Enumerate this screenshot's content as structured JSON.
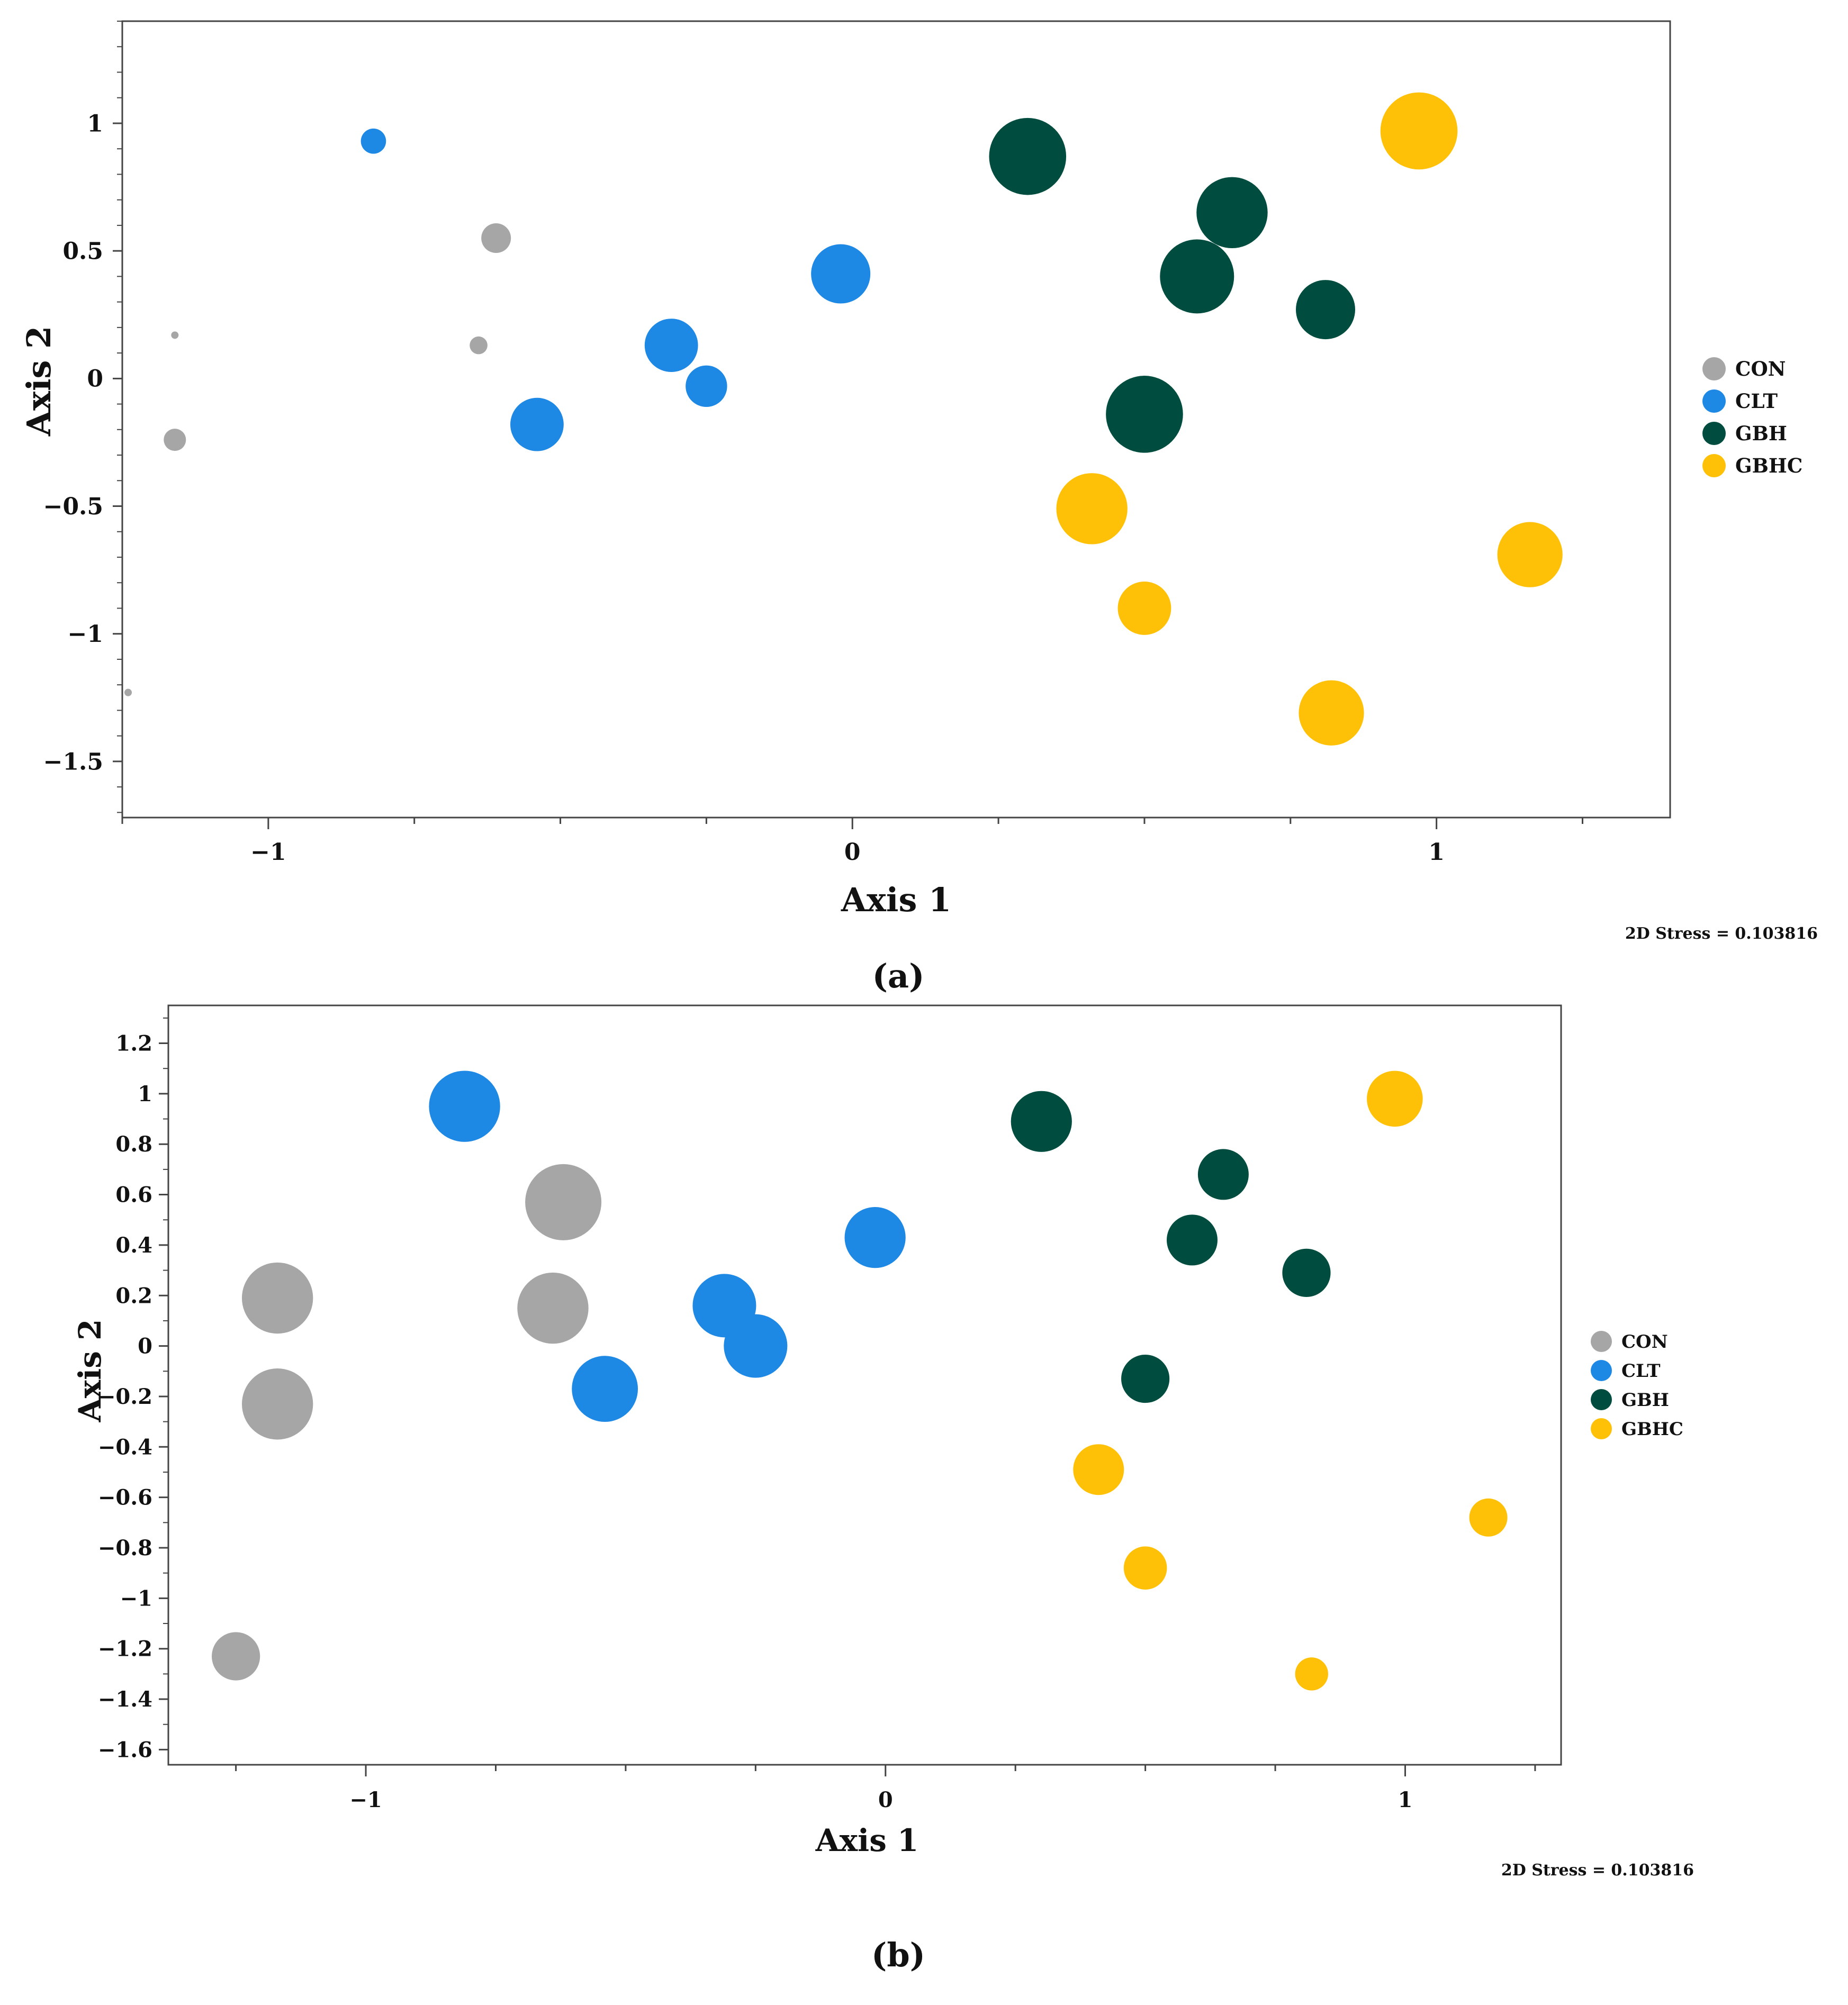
{
  "colors": {
    "CON": "#a6a6a6",
    "CLT": "#1e88e5",
    "GBH": "#004d40",
    "GBHC": "#ffc107"
  },
  "chart_data": [
    {
      "type": "scatter",
      "panel_label": "(a)",
      "xlabel": "Axis 1",
      "ylabel": "Axis 2",
      "xlim": [
        -1.25,
        1.4
      ],
      "ylim": [
        -1.72,
        1.4
      ],
      "x_ticks": [
        -1,
        0,
        1
      ],
      "x_tick_labels": [
        "−1",
        "0",
        "1"
      ],
      "y_ticks": [
        1,
        0.5,
        0,
        -0.5,
        -1,
        -1.5
      ],
      "y_tick_labels": [
        "1",
        "0.5",
        "0",
        "−0.5",
        "−1",
        "−1.5"
      ],
      "stress_text": "2D Stress = 0.103816",
      "legend": [
        "CON",
        "CLT",
        "GBH",
        "GBHC"
      ],
      "series": [
        {
          "name": "CON",
          "points": [
            {
              "x": -0.61,
              "y": 0.55,
              "size": 0.2
            },
            {
              "x": -1.16,
              "y": 0.17,
              "size": 0.05
            },
            {
              "x": -0.64,
              "y": 0.13,
              "size": 0.12
            },
            {
              "x": -1.16,
              "y": -0.24,
              "size": 0.15
            },
            {
              "x": -1.24,
              "y": -1.23,
              "size": 0.05
            }
          ]
        },
        {
          "name": "CLT",
          "points": [
            {
              "x": -0.82,
              "y": 0.93,
              "size": 0.17
            },
            {
              "x": -0.02,
              "y": 0.41,
              "size": 0.4
            },
            {
              "x": -0.31,
              "y": 0.13,
              "size": 0.36
            },
            {
              "x": -0.25,
              "y": -0.03,
              "size": 0.28
            },
            {
              "x": -0.54,
              "y": -0.18,
              "size": 0.36
            }
          ]
        },
        {
          "name": "GBH",
          "points": [
            {
              "x": 0.3,
              "y": 0.87,
              "size": 0.52
            },
            {
              "x": 0.65,
              "y": 0.65,
              "size": 0.48
            },
            {
              "x": 0.59,
              "y": 0.4,
              "size": 0.5
            },
            {
              "x": 0.81,
              "y": 0.27,
              "size": 0.4
            },
            {
              "x": 0.5,
              "y": -0.14,
              "size": 0.52
            }
          ]
        },
        {
          "name": "GBHC",
          "points": [
            {
              "x": 0.97,
              "y": 0.97,
              "size": 0.52
            },
            {
              "x": 0.41,
              "y": -0.51,
              "size": 0.48
            },
            {
              "x": 1.16,
              "y": -0.69,
              "size": 0.44
            },
            {
              "x": 0.5,
              "y": -0.9,
              "size": 0.36
            },
            {
              "x": 0.82,
              "y": -1.31,
              "size": 0.44
            }
          ]
        }
      ]
    },
    {
      "type": "scatter",
      "panel_label": "(b)",
      "xlabel": "Axis 1",
      "ylabel": "Axis 2",
      "xlim": [
        -1.38,
        1.3
      ],
      "ylim": [
        -1.66,
        1.35
      ],
      "x_ticks": [
        -1,
        0,
        1
      ],
      "x_tick_labels": [
        "−1",
        "0",
        "1"
      ],
      "y_ticks": [
        1.2,
        1,
        0.8,
        0.6,
        0.4,
        0.2,
        0,
        -0.2,
        -0.4,
        -0.6,
        -0.8,
        -1,
        -1.2,
        -1.4,
        -1.6
      ],
      "y_tick_labels": [
        "1.2",
        "1",
        "0.8",
        "0.6",
        "0.4",
        "0.2",
        "0",
        "−0.2",
        "−0.4",
        "−0.6",
        "−0.8",
        "−1",
        "−1.2",
        "−1.4",
        "−1.6"
      ],
      "stress_text": "2D Stress = 0.103816",
      "legend": [
        "CON",
        "CLT",
        "GBH",
        "GBHC"
      ],
      "series": [
        {
          "name": "CON",
          "points": [
            {
              "x": -0.62,
              "y": 0.57,
              "size": 0.6
            },
            {
              "x": -1.17,
              "y": 0.19,
              "size": 0.56
            },
            {
              "x": -0.64,
              "y": 0.15,
              "size": 0.56
            },
            {
              "x": -1.17,
              "y": -0.23,
              "size": 0.56
            },
            {
              "x": -1.25,
              "y": -1.23,
              "size": 0.38
            }
          ]
        },
        {
          "name": "CLT",
          "points": [
            {
              "x": -0.81,
              "y": 0.95,
              "size": 0.56
            },
            {
              "x": -0.02,
              "y": 0.43,
              "size": 0.48
            },
            {
              "x": -0.31,
              "y": 0.16,
              "size": 0.5
            },
            {
              "x": -0.25,
              "y": 0.0,
              "size": 0.5
            },
            {
              "x": -0.54,
              "y": -0.17,
              "size": 0.52
            }
          ]
        },
        {
          "name": "GBH",
          "points": [
            {
              "x": 0.3,
              "y": 0.89,
              "size": 0.48
            },
            {
              "x": 0.65,
              "y": 0.68,
              "size": 0.4
            },
            {
              "x": 0.59,
              "y": 0.42,
              "size": 0.4
            },
            {
              "x": 0.81,
              "y": 0.29,
              "size": 0.38
            },
            {
              "x": 0.5,
              "y": -0.13,
              "size": 0.38
            }
          ]
        },
        {
          "name": "GBHC",
          "points": [
            {
              "x": 0.98,
              "y": 0.98,
              "size": 0.44
            },
            {
              "x": 0.41,
              "y": -0.49,
              "size": 0.4
            },
            {
              "x": 1.16,
              "y": -0.68,
              "size": 0.3
            },
            {
              "x": 0.5,
              "y": -0.88,
              "size": 0.34
            },
            {
              "x": 0.82,
              "y": -1.3,
              "size": 0.26
            }
          ]
        }
      ]
    }
  ]
}
